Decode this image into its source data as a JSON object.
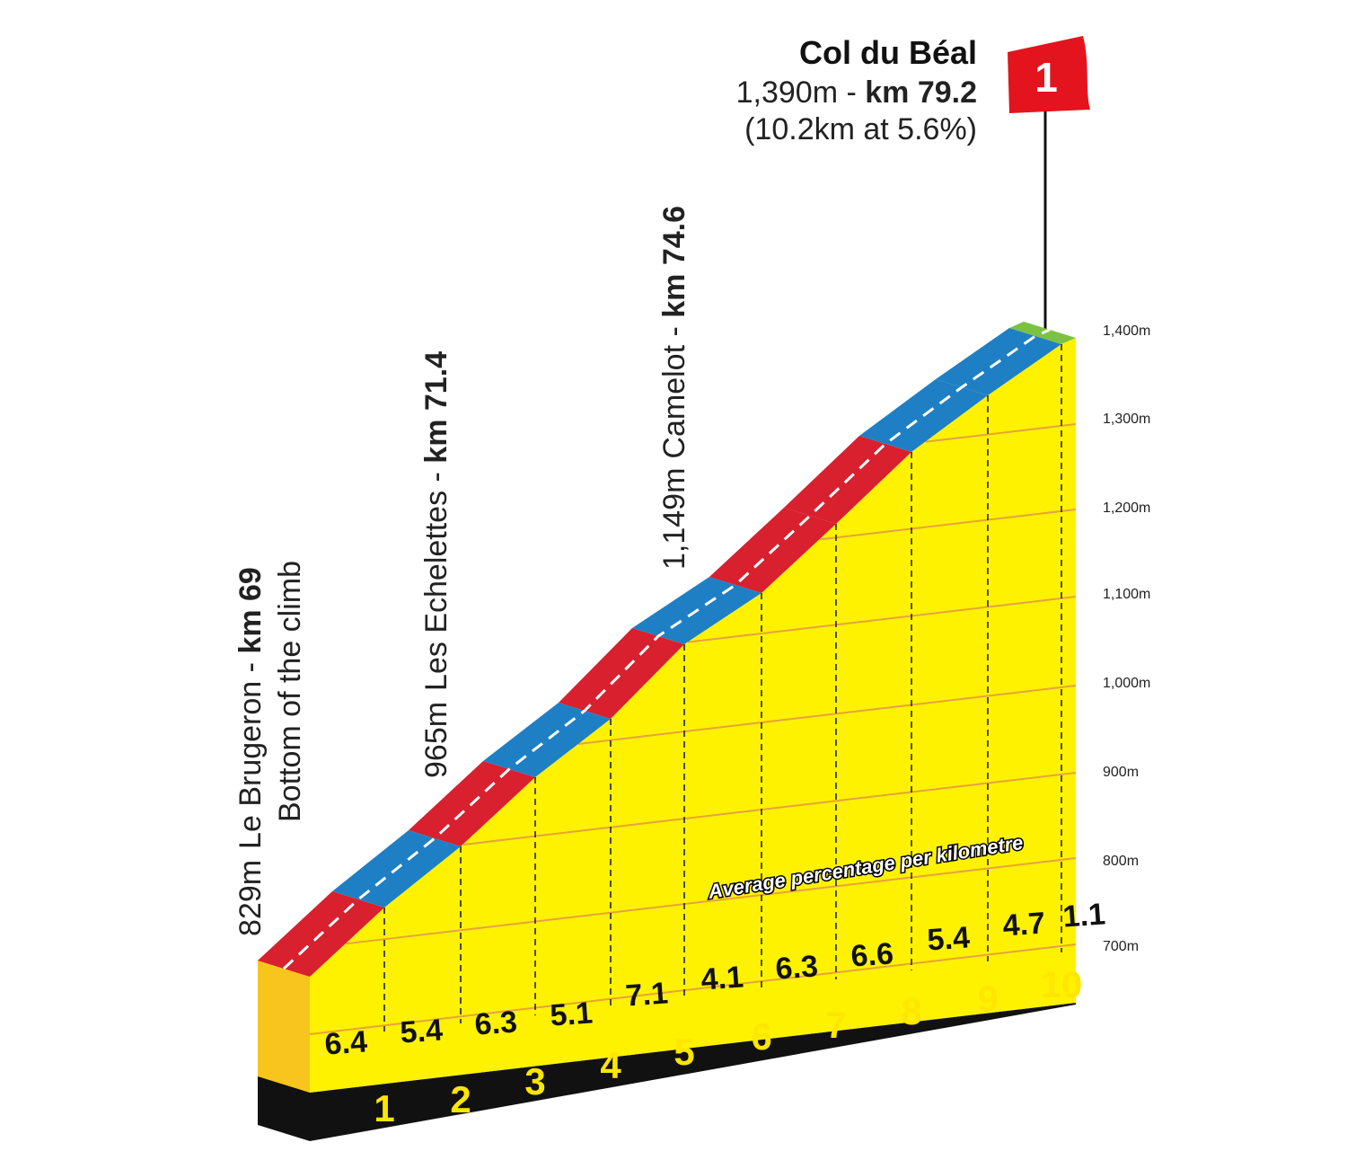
{
  "chart_data": {
    "type": "area",
    "title": "Col du Béal",
    "summit": {
      "name": "Col du Béal",
      "altitude_label": "1,390m - ",
      "km_label": "km 79.2",
      "climb_label": "(10.2km at 5.6%)",
      "category": "1"
    },
    "waypoints": [
      {
        "alt_label": "829m",
        "name": "Le Brugeron - ",
        "km_label": "km 69",
        "note": "Bottom of the climb"
      },
      {
        "alt_label": "965m",
        "name": "Les Echelettes - ",
        "km_label": "km 71.4"
      },
      {
        "alt_label": "1,149m",
        "name": "Camelot - ",
        "km_label": "km 74.6"
      }
    ],
    "y_ticks": [
      "700m",
      "800m",
      "900m",
      "1,000m",
      "1,100m",
      "1,200m",
      "1,300m",
      "1,400m"
    ],
    "ylim": [
      700,
      1400
    ],
    "km_markers": [
      "1",
      "2",
      "3",
      "4",
      "5",
      "6",
      "7",
      "8",
      "9",
      "10"
    ],
    "x_km": [
      0,
      1,
      2,
      3,
      4,
      5,
      6,
      7,
      8,
      9,
      10,
      10.2
    ],
    "gradients": [
      6.4,
      5.4,
      6.3,
      5.1,
      7.1,
      4.1,
      6.3,
      6.6,
      5.4,
      4.7,
      1.1
    ],
    "gradient_labels": [
      "6.4",
      "5.4",
      "6.3",
      "5.1",
      "7.1",
      "4.1",
      "6.3",
      "6.6",
      "5.4",
      "4.7",
      "1.1"
    ],
    "legend_label": "Average percentage per kilometre",
    "colors": {
      "profile": "#fff200",
      "side": "#f8c51e",
      "base": "#111111",
      "red_band": "#d8202e",
      "blue_band": "#1f7fc4",
      "green_band": "#7cc242",
      "grid": "#e8a23a",
      "flag": "#e3141d"
    },
    "band_colors": [
      "red",
      "blue",
      "red",
      "blue",
      "red",
      "blue",
      "red",
      "red",
      "blue",
      "blue",
      "green"
    ]
  }
}
